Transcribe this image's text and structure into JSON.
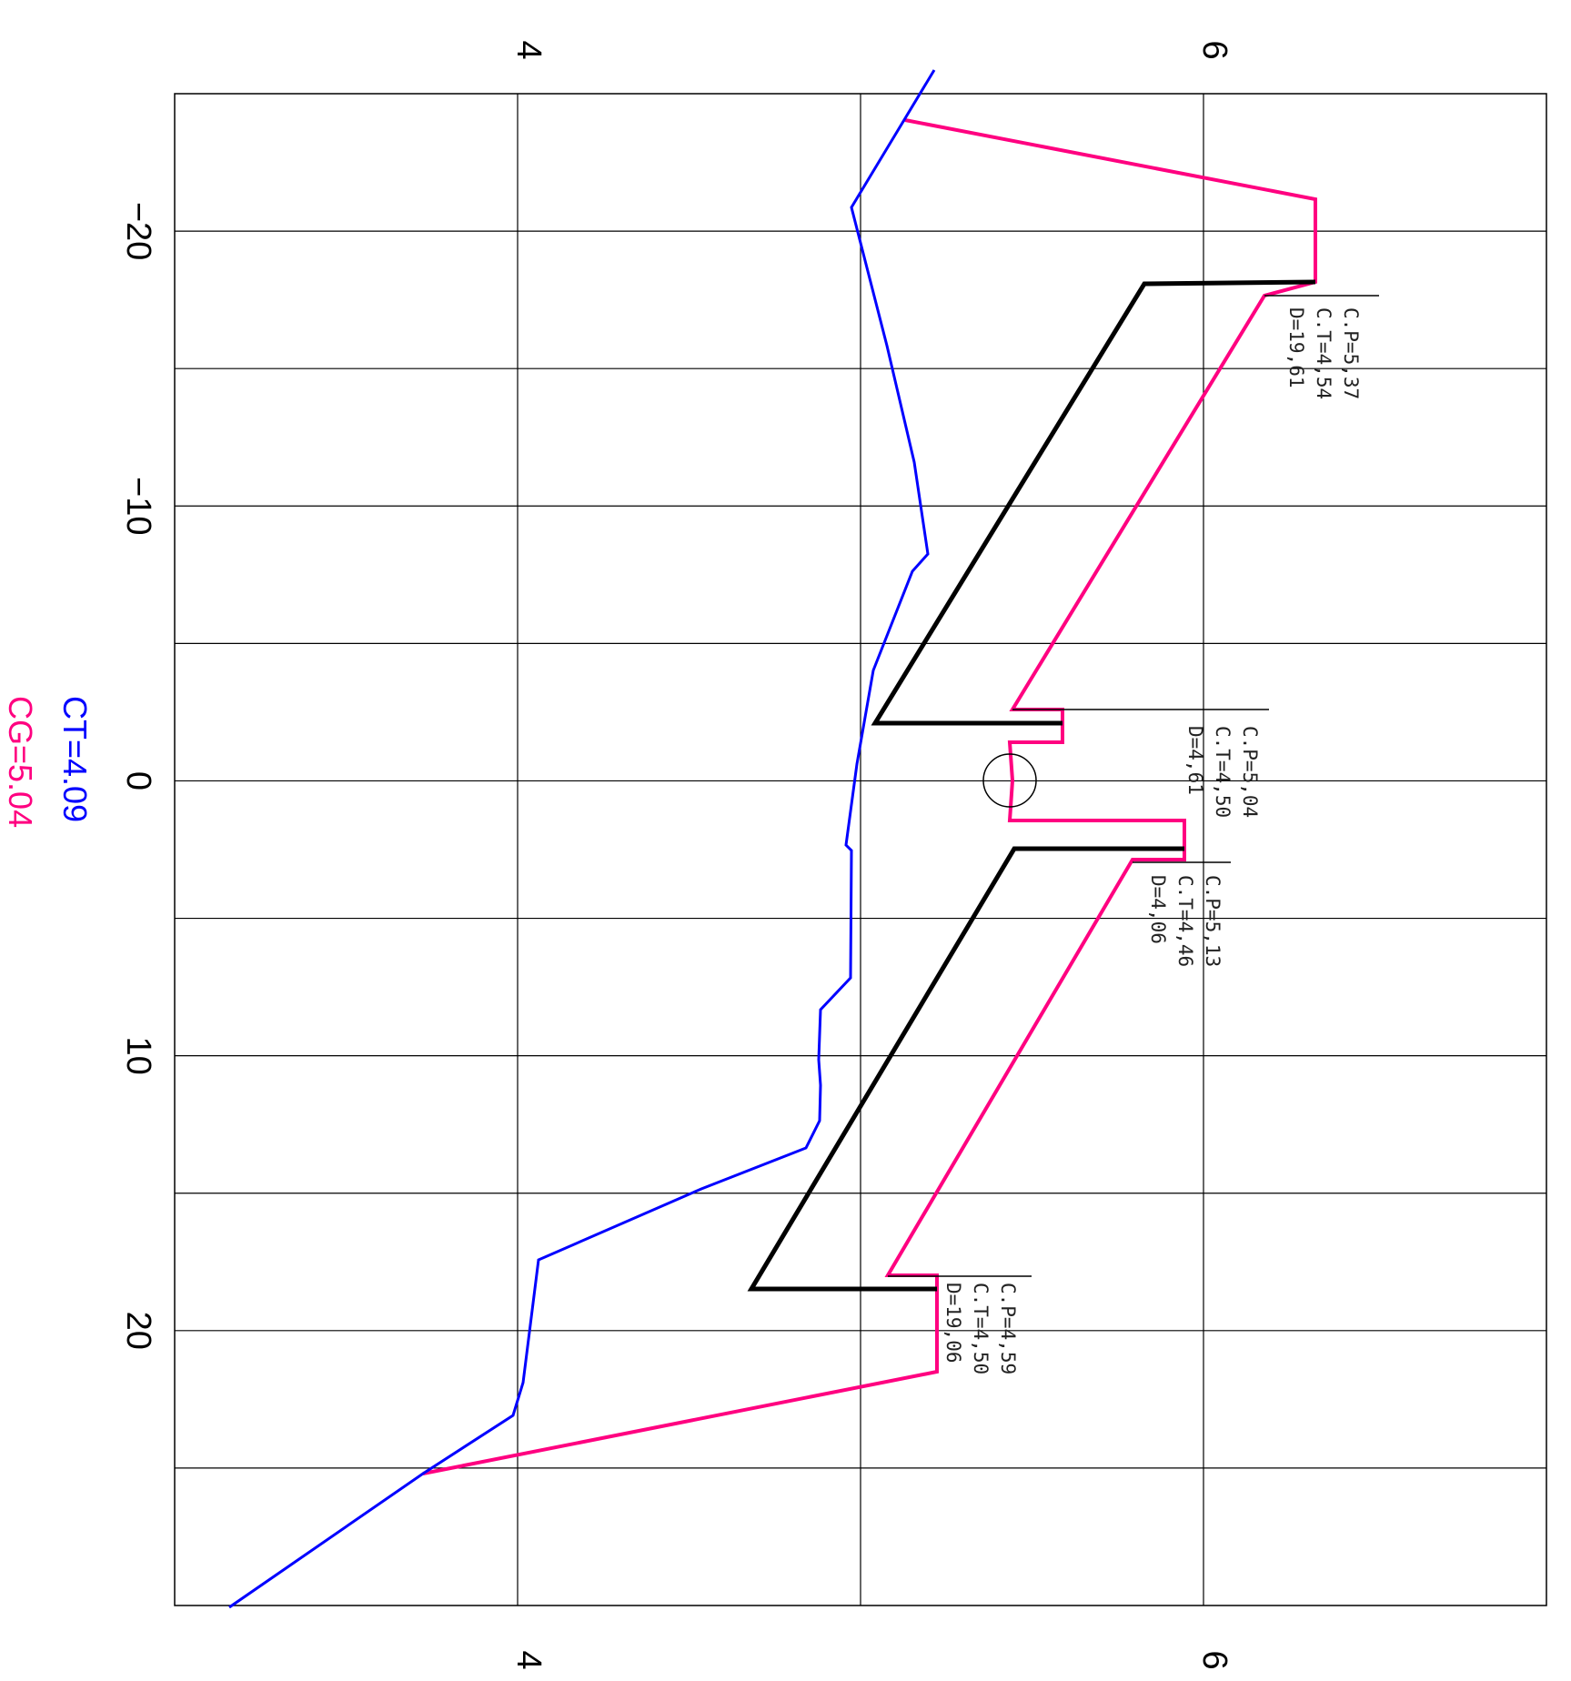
{
  "drawing": {
    "type": "cross-section",
    "y_axis_ticks": [
      "4",
      "6"
    ],
    "x_axis_ticks": [
      "−20",
      "−10",
      "0",
      "10",
      "20"
    ],
    "x_grid": [
      -25,
      -20,
      -15,
      -10,
      -5,
      0,
      5,
      10,
      15,
      20,
      25,
      30
    ],
    "y_grid": [
      3,
      4,
      5,
      6,
      7
    ],
    "colors": {
      "terrain": "#0000ff",
      "grade": "#ff0080",
      "section": "#000000",
      "grid": "#000000"
    },
    "terrain_profile": [
      [
        -25,
        5.0
      ],
      [
        -20,
        4.6
      ],
      [
        -15,
        4.75
      ],
      [
        -10.5,
        4.8
      ],
      [
        -10,
        4.8
      ],
      [
        -8,
        4.7
      ],
      [
        -4,
        4.55
      ],
      [
        -2,
        4.5
      ],
      [
        0,
        4.48
      ],
      [
        2,
        4.45
      ],
      [
        3,
        4.46
      ],
      [
        5,
        4.46
      ],
      [
        7,
        4.45
      ],
      [
        8,
        4.37
      ],
      [
        10,
        4.35
      ],
      [
        11,
        4.35
      ],
      [
        12,
        4.37
      ],
      [
        13,
        4.32
      ],
      [
        14,
        4.0
      ],
      [
        16,
        3.7
      ],
      [
        19,
        3.25
      ],
      [
        22,
        3.2
      ],
      [
        24,
        3.05
      ],
      [
        25,
        2.9
      ],
      [
        30,
        2.2
      ]
    ],
    "grade_profile": [
      [
        -24,
        4.6
      ],
      [
        -21,
        6.15
      ],
      [
        -19.5,
        6.15
      ],
      [
        -17.5,
        5.95
      ],
      [
        -2.5,
        4.05
      ],
      [
        -2,
        4.3
      ],
      [
        -1,
        4.3
      ],
      [
        -0.8,
        4.05
      ],
      [
        0.5,
        4.05
      ],
      [
        1,
        4.05
      ],
      [
        1.5,
        4.05
      ],
      [
        2.5,
        4.7
      ],
      [
        2.7,
        4.7
      ],
      [
        4,
        4.5
      ],
      [
        17.5,
        3.8
      ],
      [
        18.5,
        3.8
      ],
      [
        19,
        3.8
      ],
      [
        22,
        3.8
      ],
      [
        25.5,
        2.5
      ]
    ],
    "section_profile": [
      [
        -19.5,
        6.15
      ],
      [
        -17.5,
        5.95
      ],
      [
        -17.5,
        5.25
      ],
      [
        -2,
        4.3
      ],
      [
        -1.2,
        4.3
      ],
      [
        -1,
        4.3
      ],
      [
        -2,
        3.75
      ],
      [
        -2.1,
        3.55
      ],
      [
        -1.7,
        3.55
      ]
    ],
    "section_profile_b": [
      [
        3,
        4.7
      ],
      [
        2.6,
        4.7
      ],
      [
        2.5,
        4.05
      ],
      [
        18,
        3.05
      ],
      [
        18,
        3.7
      ]
    ],
    "annotations": [
      {
        "lines": [
          "C.P=5,37",
          "C.T=4,54",
          "D=19,61"
        ]
      },
      {
        "lines": [
          "C.P=5,04",
          "C.T=4,50",
          "D=4,61"
        ]
      },
      {
        "lines": [
          "C.P=5,13",
          "C.T=4,46",
          "D=4,06"
        ]
      },
      {
        "lines": [
          "C.P=4,59",
          "C.T=4,50",
          "D=19,06"
        ]
      }
    ],
    "summary": {
      "ct_label": "CT=4.09",
      "cg_label": "CG=5.04"
    }
  }
}
